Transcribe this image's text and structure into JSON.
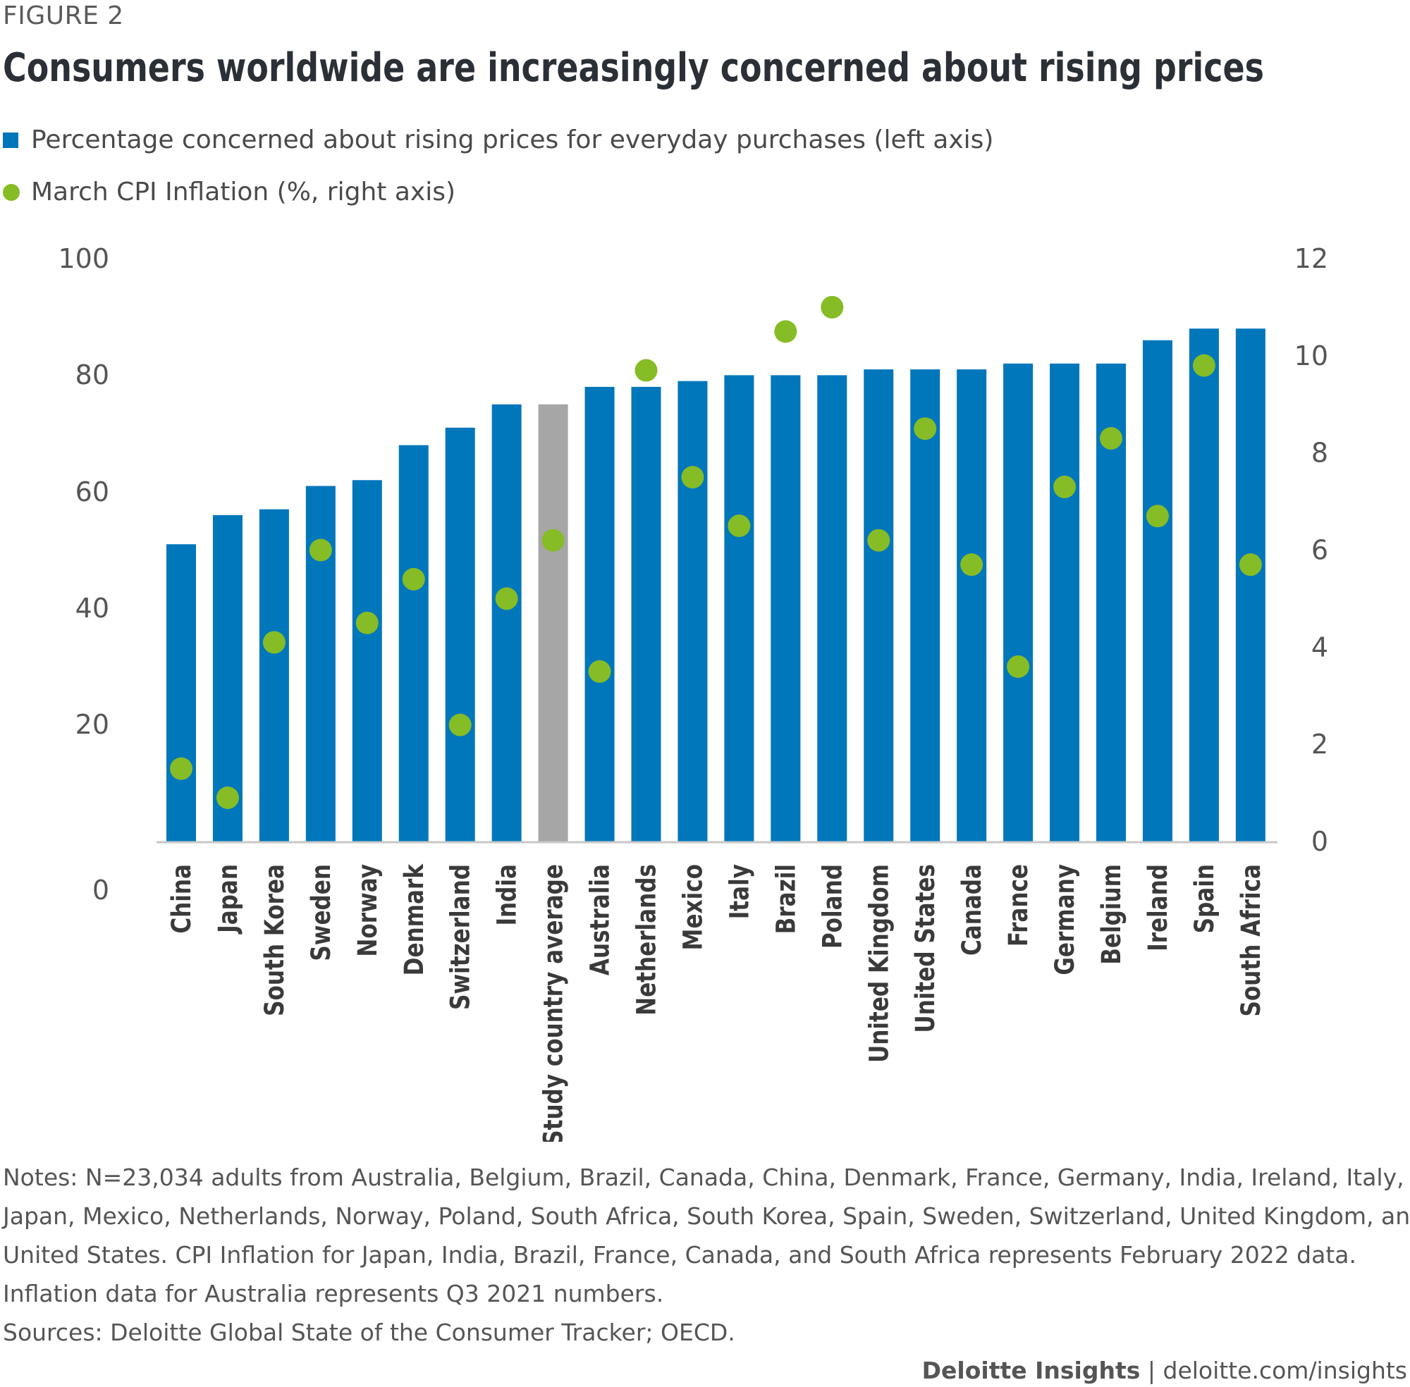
{
  "figure_label": "FIGURE 2",
  "title": "Consumers worldwide are increasingly concerned about rising prices",
  "legend": [
    {
      "label": "Percentage concerned about rising prices for everyday purchases (left axis)",
      "shape": "square",
      "color": "#0076BB"
    },
    {
      "label": "March CPI Inflation (%, right axis)",
      "shape": "circle",
      "color": "#86BC25"
    }
  ],
  "colors": {
    "bar": "#0076BB",
    "bar_highlight": "#A6A6A6",
    "dot": "#86BC25",
    "axis": "#C8C8C8"
  },
  "chart_data": {
    "type": "bar",
    "categories": [
      "China",
      "Japan",
      "South Korea",
      "Sweden",
      "Norway",
      "Denmark",
      "Switzerland",
      "India",
      "Study country average",
      "Australia",
      "Netherlands",
      "Mexico",
      "Italy",
      "Brazil",
      "Poland",
      "United Kingdom",
      "United States",
      "Canada",
      "France",
      "Germany",
      "Belgium",
      "Ireland",
      "Spain",
      "South Africa"
    ],
    "highlight_category": "Study country average",
    "series": [
      {
        "name": "Percentage concerned about rising prices for everyday purchases (left axis)",
        "type": "bar",
        "axis": "left",
        "values": [
          51,
          56,
          57,
          61,
          62,
          68,
          71,
          75,
          75,
          78,
          78,
          79,
          80,
          80,
          80,
          81,
          81,
          81,
          82,
          82,
          82,
          86,
          88,
          88
        ]
      },
      {
        "name": "March CPI Inflation (%, right axis)",
        "type": "scatter",
        "axis": "right",
        "values": [
          1.5,
          0.9,
          4.1,
          6.0,
          4.5,
          5.4,
          2.4,
          5.0,
          6.2,
          3.5,
          9.7,
          7.5,
          6.5,
          10.5,
          11.0,
          6.2,
          8.5,
          5.7,
          3.6,
          7.3,
          8.3,
          6.7,
          9.8,
          5.7
        ]
      }
    ],
    "y_left": {
      "ylim": [
        0,
        100
      ],
      "ticks": [
        "100",
        "80",
        "60",
        "40",
        "20",
        "0"
      ]
    },
    "y_right": {
      "ylim": [
        0,
        12
      ],
      "ticks": [
        "12",
        "10",
        "8",
        "6",
        "4",
        "2",
        "0"
      ]
    },
    "legend_position": "top-left",
    "grid": false
  },
  "notes": [
    "Notes: N=23,034 adults from Australia, Belgium, Brazil, Canada, China, Denmark, France, Germany, India, Ireland, Italy,",
    "Japan, Mexico, Netherlands, Norway, Poland, South Africa, South Korea, Spain, Sweden, Switzerland, United Kingdom, and",
    "United States. CPI Inflation for Japan, India, Brazil, France, Canada, and South Africa represents February 2022 data.",
    "Inflation data for Australia represents Q3 2021 numbers.",
    "Sources: Deloitte Global State of the Consumer Tracker; OECD."
  ],
  "footer": {
    "brand": "Deloitte Insights",
    "separator": " | ",
    "url": "deloitte.com/insights"
  }
}
